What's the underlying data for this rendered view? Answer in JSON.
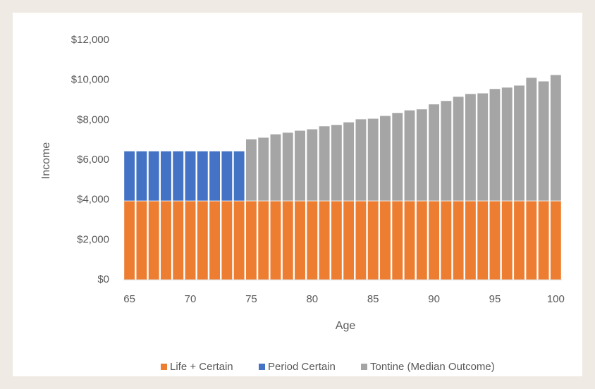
{
  "chart_data": {
    "type": "stacked_bar",
    "x_label": "Age",
    "y_label": "Income",
    "categories": [
      65,
      null,
      null,
      null,
      null,
      70,
      null,
      null,
      null,
      null,
      75,
      null,
      null,
      null,
      null,
      80,
      null,
      null,
      null,
      null,
      85,
      null,
      null,
      null,
      null,
      90,
      null,
      null,
      null,
      null,
      95,
      null,
      null,
      null,
      null,
      100
    ],
    "series": [
      {
        "name": "Life + Certain",
        "color": "#ed7d31",
        "values": [
          3950,
          3950,
          3950,
          3950,
          3950,
          3950,
          3950,
          3950,
          3950,
          3950,
          3950,
          3950,
          3950,
          3950,
          3950,
          3950,
          3950,
          3950,
          3950,
          3950,
          3950,
          3950,
          3950,
          3950,
          3950,
          3950,
          3950,
          3950,
          3950,
          3950,
          3950,
          3950,
          3950,
          3950,
          3950,
          3950
        ]
      },
      {
        "name": "Period Certain",
        "color": "#4472c4",
        "values": [
          2500,
          2500,
          2500,
          2500,
          2500,
          2500,
          2500,
          2500,
          2500,
          2500,
          null,
          null,
          null,
          null,
          null,
          null,
          null,
          null,
          null,
          null,
          null,
          null,
          null,
          null,
          null,
          null,
          null,
          null,
          null,
          null,
          null,
          null,
          null,
          null,
          null,
          null
        ]
      },
      {
        "name": "Tontine (Median Outcome)",
        "color": "#a5a5a5",
        "values": [
          null,
          null,
          null,
          null,
          null,
          null,
          null,
          null,
          null,
          null,
          3100,
          3180,
          3350,
          3430,
          3530,
          3600,
          3750,
          3820,
          3950,
          4100,
          4130,
          4270,
          4420,
          4550,
          4600,
          4850,
          5020,
          5230,
          5370,
          5400,
          5620,
          5690,
          5790,
          6180,
          6000,
          6320
        ]
      }
    ],
    "ylim": [
      0,
      12000
    ],
    "yticks": [
      {
        "value": 0,
        "label": "$0"
      },
      {
        "value": 2000,
        "label": "$2,000"
      },
      {
        "value": 4000,
        "label": "$4,000"
      },
      {
        "value": 6000,
        "label": "$6,000"
      },
      {
        "value": 8000,
        "label": "$8,000"
      },
      {
        "value": 10000,
        "label": "$10,000"
      },
      {
        "value": 12000,
        "label": "$12,000"
      }
    ],
    "legend": "bottom"
  }
}
